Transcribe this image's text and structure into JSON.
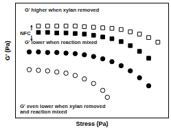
{
  "chart_data": {
    "type": "scatter",
    "x_label": "Stress (Pa)",
    "y_label": "G' (Pa)",
    "xlim": [
      0,
      100
    ],
    "ylim": [
      0,
      100
    ],
    "xticks": [],
    "yticks": [],
    "tick_labels": false,
    "grid": false,
    "series": [
      {
        "color": "#000000",
        "marker": "open_square",
        "x": [
          15,
          21,
          27,
          33,
          39,
          45,
          51,
          57,
          63,
          69,
          75,
          81,
          87,
          93
        ],
        "values": [
          80,
          80,
          80,
          80,
          80,
          79.5,
          79,
          78.5,
          78,
          77,
          75,
          73,
          70,
          66
        ]
      },
      {
        "color": "#000000",
        "marker": "square",
        "x": [
          15,
          21,
          27,
          33,
          39,
          45,
          51,
          57,
          63,
          69,
          75,
          81,
          87
        ],
        "values": [
          74.5,
          74.5,
          74,
          74,
          73.5,
          73,
          72,
          70.5,
          69,
          66.5,
          63,
          58,
          52
        ]
      },
      {
        "color": "#000000",
        "marker": "circle",
        "x": [
          9,
          15,
          21,
          27,
          33,
          39,
          45,
          51,
          57,
          63,
          69,
          75,
          81,
          87
        ],
        "values": [
          57.5,
          57.5,
          57,
          57,
          56.5,
          56,
          55,
          53.5,
          51.5,
          49,
          45.5,
          41,
          35,
          28
        ]
      },
      {
        "color": "#000000",
        "marker": "open_circle",
        "x": [
          9,
          15,
          21,
          27,
          33,
          39,
          45,
          51,
          57,
          60
        ],
        "values": [
          42,
          41.5,
          41,
          40,
          39,
          37,
          34,
          30,
          24,
          18
        ]
      }
    ],
    "annotations": [
      "G' higher when xylan removed",
      "NFC",
      "G' lower when reaction mixed",
      "G' even lower when xylan removed\nand reaction mixed"
    ]
  }
}
